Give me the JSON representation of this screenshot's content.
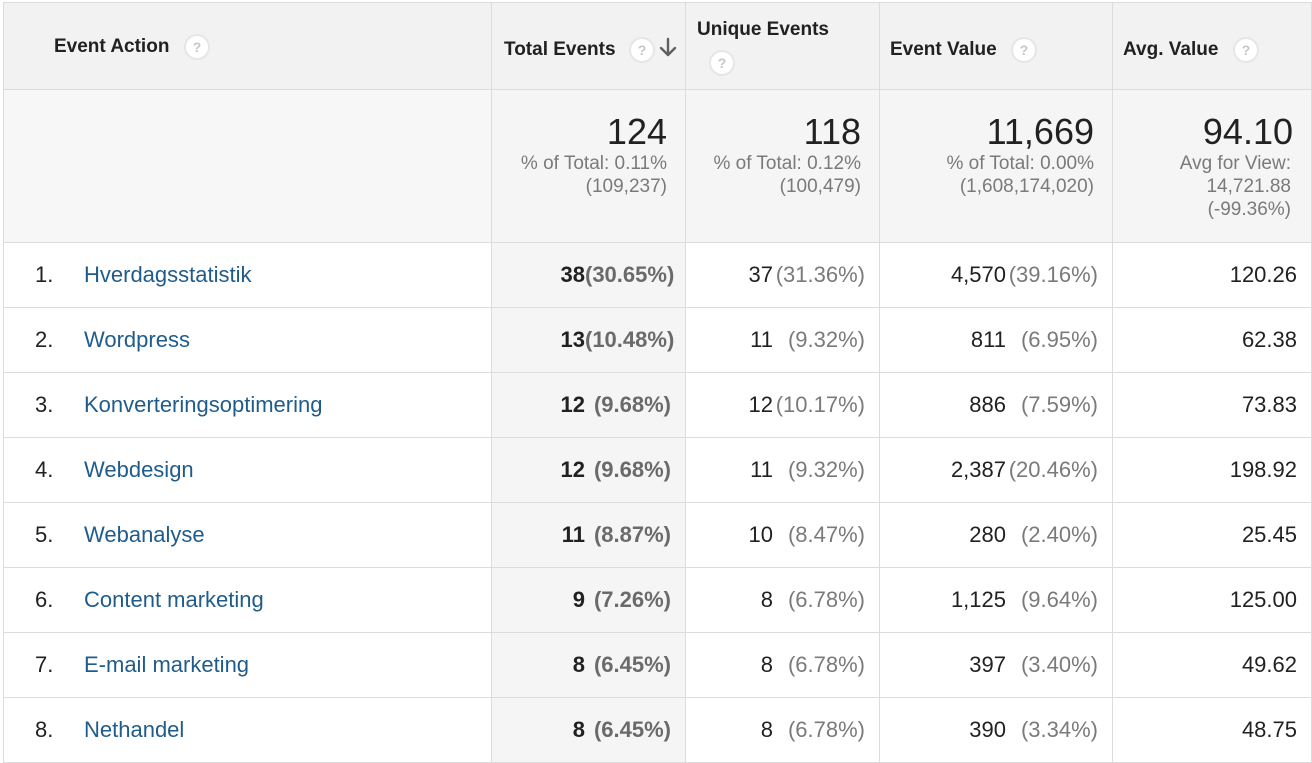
{
  "columns": {
    "event_action": "Event Action",
    "total_events": "Total Events",
    "unique_events": "Unique Events",
    "event_value": "Event Value",
    "avg_value": "Avg. Value"
  },
  "help_glyph": "?",
  "totals": {
    "total_events": {
      "value": "124",
      "line1": "% of Total: 0.11%",
      "line2": "(109,237)"
    },
    "unique_events": {
      "value": "118",
      "line1": "% of Total: 0.12%",
      "line2": "(100,479)"
    },
    "event_value": {
      "value": "11,669",
      "line1": "% of Total: 0.00%",
      "line2": "(1,608,174,020)"
    },
    "avg_value": {
      "value": "94.10",
      "line1": "Avg for View:",
      "line2": "14,721.88",
      "line3": "(-99.36%)"
    }
  },
  "rows": [
    {
      "rank": "1.",
      "action": "Hverdagsstatistik",
      "total": "38",
      "total_pct": "(30.65%)",
      "unique": "37",
      "unique_pct": "(31.36%)",
      "value": "4,570",
      "value_pct": "(39.16%)",
      "avg": "120.26"
    },
    {
      "rank": "2.",
      "action": "Wordpress",
      "total": "13",
      "total_pct": "(10.48%)",
      "unique": "11",
      "unique_pct": "(9.32%)",
      "value": "811",
      "value_pct": "(6.95%)",
      "avg": "62.38"
    },
    {
      "rank": "3.",
      "action": "Konverteringsoptimering",
      "total": "12",
      "total_pct": "(9.68%)",
      "unique": "12",
      "unique_pct": "(10.17%)",
      "value": "886",
      "value_pct": "(7.59%)",
      "avg": "73.83"
    },
    {
      "rank": "4.",
      "action": "Webdesign",
      "total": "12",
      "total_pct": "(9.68%)",
      "unique": "11",
      "unique_pct": "(9.32%)",
      "value": "2,387",
      "value_pct": "(20.46%)",
      "avg": "198.92"
    },
    {
      "rank": "5.",
      "action": "Webanalyse",
      "total": "11",
      "total_pct": "(8.87%)",
      "unique": "10",
      "unique_pct": "(8.47%)",
      "value": "280",
      "value_pct": "(2.40%)",
      "avg": "25.45"
    },
    {
      "rank": "6.",
      "action": "Content marketing",
      "total": "9",
      "total_pct": "(7.26%)",
      "unique": "8",
      "unique_pct": "(6.78%)",
      "value": "1,125",
      "value_pct": "(9.64%)",
      "avg": "125.00"
    },
    {
      "rank": "7.",
      "action": "E-mail marketing",
      "total": "8",
      "total_pct": "(6.45%)",
      "unique": "8",
      "unique_pct": "(6.78%)",
      "value": "397",
      "value_pct": "(3.40%)",
      "avg": "49.62"
    },
    {
      "rank": "8.",
      "action": "Nethandel",
      "total": "8",
      "total_pct": "(6.45%)",
      "unique": "8",
      "unique_pct": "(6.78%)",
      "value": "390",
      "value_pct": "(3.34%)",
      "avg": "48.75"
    }
  ],
  "icons": {
    "help": "help-icon",
    "sort": "sort-descending-icon"
  },
  "colors": {
    "link": "#1f5c8c",
    "header_bg": "#f2f2f2",
    "muted_text": "#7a7a7a"
  }
}
